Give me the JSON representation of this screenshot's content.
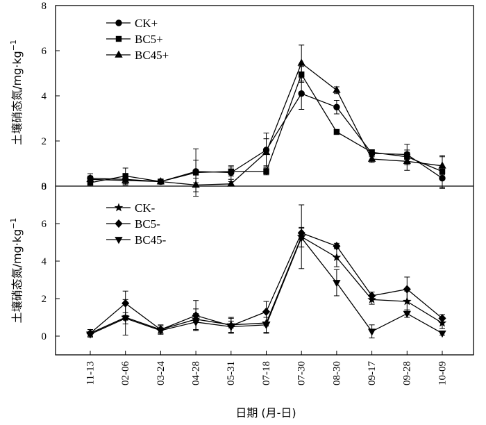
{
  "chart_data": {
    "type": "line",
    "x_label": "日期 (月-日)",
    "categories": [
      "11-13",
      "02-06",
      "03-24",
      "04-28",
      "05-31",
      "07-18",
      "07-30",
      "08-30",
      "09-17",
      "09-28",
      "10-09"
    ],
    "panels": [
      {
        "y_label": "土壤硝态氮/mg·kg",
        "y_label_sup": "−1",
        "y_range": [
          0,
          8
        ],
        "y_ticks": [
          0,
          2,
          4,
          6,
          8
        ],
        "legend_position": "top-left",
        "series": [
          {
            "name": "CK+",
            "marker": "circle",
            "values": [
              0.35,
              0.3,
              0.2,
              0.65,
              0.6,
              1.6,
              4.1,
              3.5,
              1.45,
              1.4,
              0.35
            ],
            "errors": [
              0.2,
              0.2,
              0.1,
              0.5,
              0.3,
              0.75,
              0.7,
              0.3,
              0.15,
              0.45,
              0.45
            ]
          },
          {
            "name": "BC5+",
            "marker": "square",
            "values": [
              0.15,
              0.45,
              0.2,
              0.6,
              0.65,
              0.65,
              4.95,
              2.4,
              1.5,
              1.3,
              0.65
            ],
            "errors": [
              0.15,
              0.35,
              0.1,
              1.05,
              0.2,
              0.15,
              0.35,
              0.1,
              0.1,
              0.3,
              0.7
            ]
          },
          {
            "name": "BC45+",
            "marker": "triangle-up",
            "values": [
              0.3,
              0.25,
              0.2,
              0.05,
              0.1,
              1.5,
              5.45,
              4.25,
              1.2,
              1.1,
              0.9
            ],
            "errors": [
              0.15,
              0.2,
              0.1,
              0.3,
              0.1,
              0.6,
              0.8,
              0.15,
              0.15,
              0.4,
              0.4
            ]
          }
        ]
      },
      {
        "y_label": "土壤硝态氮/mg·kg",
        "y_label_sup": "−1",
        "y_range": [
          -1,
          8
        ],
        "y_ticks": [
          0,
          2,
          4,
          6,
          8
        ],
        "legend_position": "top-left",
        "series": [
          {
            "name": "CK-",
            "marker": "star",
            "values": [
              0.15,
              1.0,
              0.35,
              0.9,
              0.6,
              0.7,
              5.3,
              4.2,
              1.95,
              1.85,
              0.7
            ],
            "errors": [
              0.2,
              0.95,
              0.25,
              0.55,
              0.4,
              0.55,
              1.7,
              0.5,
              0.25,
              0.55,
              0.3
            ]
          },
          {
            "name": "BC5-",
            "marker": "diamond",
            "values": [
              0.15,
              1.75,
              0.35,
              1.1,
              0.55,
              1.3,
              5.5,
              4.8,
              2.15,
              2.5,
              0.95
            ],
            "errors": [
              0.2,
              0.65,
              0.2,
              0.8,
              0.4,
              0.55,
              0.3,
              0.15,
              0.2,
              0.65,
              0.2
            ]
          },
          {
            "name": "BC45-",
            "marker": "triangle-down",
            "values": [
              0.1,
              0.95,
              0.3,
              0.75,
              0.5,
              0.6,
              5.25,
              2.85,
              0.25,
              1.2,
              0.15
            ],
            "errors": [
              0.1,
              0.3,
              0.15,
              0.45,
              0.3,
              0.4,
              0.5,
              0.7,
              0.35,
              0.2,
              0.1
            ]
          }
        ]
      }
    ]
  }
}
